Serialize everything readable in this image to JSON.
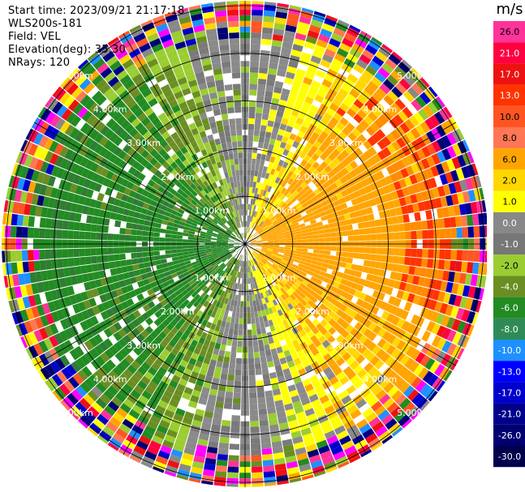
{
  "header": {
    "start_time": "Start time: 2023/09/21 21:17:18",
    "instrument": "WLS200s-181",
    "field": "Field: VEL",
    "elevation": "Elevation(deg): 35.30",
    "nrays": "NRays: 120"
  },
  "chart_data": {
    "type": "heatmap",
    "projection": "polar PPI",
    "field": "VEL",
    "units": "m/s",
    "nrays": 120,
    "ring_labels": [
      "1.00km",
      "2.00km",
      "3.00km",
      "4.00km",
      "5.00km"
    ],
    "ring_ranges_km": [
      1,
      2,
      3,
      4,
      5
    ],
    "max_range_km": 5.1,
    "colorbar": {
      "label": "m/s",
      "levels": [
        "26.0",
        "21.0",
        "17.0",
        "13.0",
        "10.0",
        "8.0",
        "6.0",
        "2.0",
        "1.0",
        "0.0",
        "-1.0",
        "-2.0",
        "-4.0",
        "-6.0",
        "-8.0",
        "-10.0",
        "-13.0",
        "-17.0",
        "-21.0",
        "-26.0",
        "-30.0"
      ],
      "colors": [
        "#ff3399",
        "#ff0040",
        "#ee1111",
        "#ff3300",
        "#ff5522",
        "#ff7755",
        "#ffa500",
        "#ffd700",
        "#ffff00",
        "#888888",
        "#777777",
        "#9acd32",
        "#6b8e23",
        "#228b22",
        "#2e8b57",
        "#1e90ff",
        "#0000ff",
        "#0000cd",
        "#00008b",
        "#000070",
        "#00004d"
      ]
    },
    "pattern": "Approaching (positive, yellow/orange) east sector; receding (negative, green) west sector; gray near-zero along north and south; noise beyond 4.5 km"
  }
}
